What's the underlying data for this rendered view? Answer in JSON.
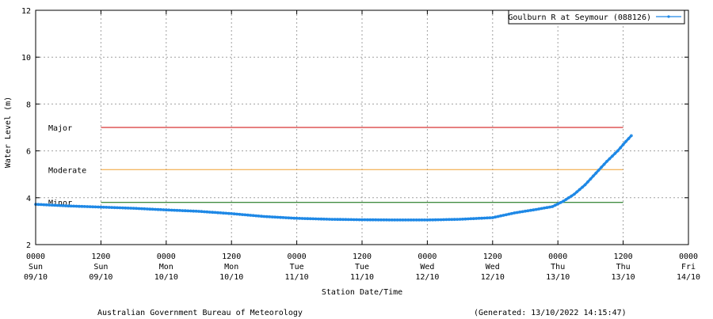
{
  "chart_data": {
    "type": "line",
    "title": "",
    "xlabel": "Station Date/Time",
    "ylabel": "Water Level (m)",
    "ylim": [
      2,
      12
    ],
    "yticks": [
      "2",
      "4",
      "6",
      "8",
      "10",
      "12"
    ],
    "xlim_hours": [
      0,
      120
    ],
    "xticks": [
      {
        "h": 0,
        "time": "0000",
        "day": "Sun",
        "date": "09/10"
      },
      {
        "h": 12,
        "time": "1200",
        "day": "Sun",
        "date": "09/10"
      },
      {
        "h": 24,
        "time": "0000",
        "day": "Mon",
        "date": "10/10"
      },
      {
        "h": 36,
        "time": "1200",
        "day": "Mon",
        "date": "10/10"
      },
      {
        "h": 48,
        "time": "0000",
        "day": "Tue",
        "date": "11/10"
      },
      {
        "h": 60,
        "time": "1200",
        "day": "Tue",
        "date": "11/10"
      },
      {
        "h": 72,
        "time": "0000",
        "day": "Wed",
        "date": "12/10"
      },
      {
        "h": 84,
        "time": "1200",
        "day": "Wed",
        "date": "12/10"
      },
      {
        "h": 96,
        "time": "0000",
        "day": "Thu",
        "date": "13/10"
      },
      {
        "h": 108,
        "time": "1200",
        "day": "Thu",
        "date": "13/10"
      },
      {
        "h": 120,
        "time": "0000",
        "day": "Fri",
        "date": "14/10"
      }
    ],
    "grid": true,
    "legend_position": "top-right",
    "thresholds": [
      {
        "name": "Major",
        "level": 7.0,
        "x_range_hours": [
          12,
          108
        ],
        "color": "#cc0000"
      },
      {
        "name": "Moderate",
        "level": 5.2,
        "x_range_hours": [
          12,
          108
        ],
        "color": "#f0a030"
      },
      {
        "name": "Minor",
        "level": 3.8,
        "x_range_hours": [
          12,
          108
        ],
        "color": "#006600"
      }
    ],
    "series": [
      {
        "name": "Goulburn R at Seymour (088126)",
        "color": "#1e88e5",
        "x_hours": [
          0,
          6,
          12,
          18,
          24,
          30,
          36,
          42,
          48,
          54,
          60,
          66,
          72,
          78,
          84,
          88,
          92,
          95,
          97,
          99,
          101,
          103,
          105,
          107,
          108.5,
          109.5
        ],
        "values": [
          3.72,
          3.65,
          3.6,
          3.55,
          3.48,
          3.42,
          3.32,
          3.2,
          3.12,
          3.08,
          3.06,
          3.05,
          3.05,
          3.08,
          3.15,
          3.35,
          3.5,
          3.62,
          3.85,
          4.15,
          4.55,
          5.05,
          5.55,
          6.0,
          6.4,
          6.65
        ]
      }
    ]
  },
  "footer": {
    "organisation": "Australian Government Bureau of Meteorology",
    "generated": "(Generated: 13/10/2022 14:15:47)"
  }
}
